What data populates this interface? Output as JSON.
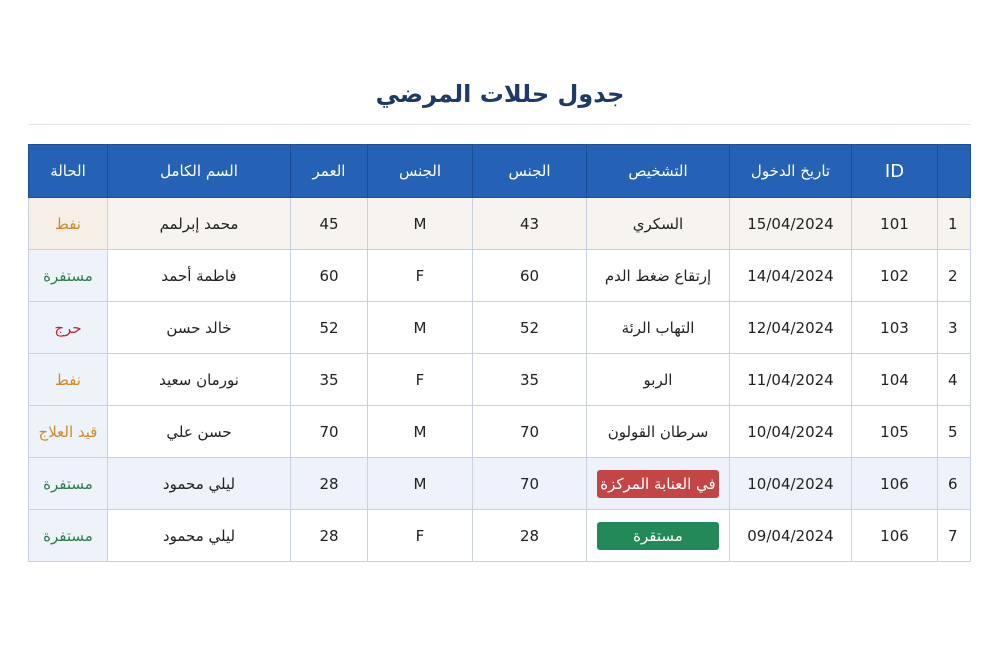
{
  "title": "جدول حللات المرضي",
  "headers": {
    "status": "الحالة",
    "full_name": "السم الكامل",
    "age": "العمر",
    "gender": "الجنس",
    "gender2": "الجنس",
    "diagnosis": "التشخيص",
    "admission_date": "تاريخ الدخول",
    "id": "ID",
    "row_number": ""
  },
  "colors": {
    "header": "#2561b5",
    "orange": "#d0892a",
    "green": "#2e7d4f",
    "red": "#c0272d",
    "badge_red": "#c44545",
    "badge_green": "#228a58"
  },
  "rows": [
    {
      "n": "1",
      "id": "101",
      "date": "15/04/2024",
      "diagnosis": "السكري",
      "g2": "43",
      "gender": "M",
      "age": "45",
      "name": "محمد إبرلمم",
      "status": "نفط",
      "status_color": "orange"
    },
    {
      "n": "2",
      "id": "102",
      "date": "14/04/2024",
      "diagnosis": "إرتقاع ضغط الدم",
      "g2": "60",
      "gender": "F",
      "age": "60",
      "name": "فاطمة أحمد",
      "status": "مستفرة",
      "status_color": "green"
    },
    {
      "n": "3",
      "id": "103",
      "date": "12/04/2024",
      "diagnosis": "التهاب الرئة",
      "g2": "52",
      "gender": "M",
      "age": "52",
      "name": "خالد حسن",
      "status": "حرج",
      "status_color": "red"
    },
    {
      "n": "4",
      "id": "104",
      "date": "11/04/2024",
      "diagnosis": "الربو",
      "g2": "35",
      "gender": "F",
      "age": "35",
      "name": "نورمان سعيد",
      "status": "نفط",
      "status_color": "orange"
    },
    {
      "n": "5",
      "id": "105",
      "date": "10/04/2024",
      "diagnosis": "سرطان القولون",
      "g2": "70",
      "gender": "M",
      "age": "70",
      "name": "حسن علي",
      "status": "قيد العلاج",
      "status_color": "orange"
    },
    {
      "n": "6",
      "id": "106",
      "date": "10/04/2024",
      "diagnosis": "في العنابة المركزة",
      "diagnosis_badge": "badge_red",
      "g2": "70",
      "gender": "M",
      "age": "28",
      "name": "ليلي محمود",
      "status": "مستفرة",
      "status_color": "green"
    },
    {
      "n": "7",
      "id": "106",
      "date": "09/04/2024",
      "diagnosis": "مستقرة",
      "diagnosis_badge": "badge_green",
      "g2": "28",
      "gender": "F",
      "age": "28",
      "name": "ليلي محمود",
      "status": "مستفرة",
      "status_color": "green"
    }
  ]
}
